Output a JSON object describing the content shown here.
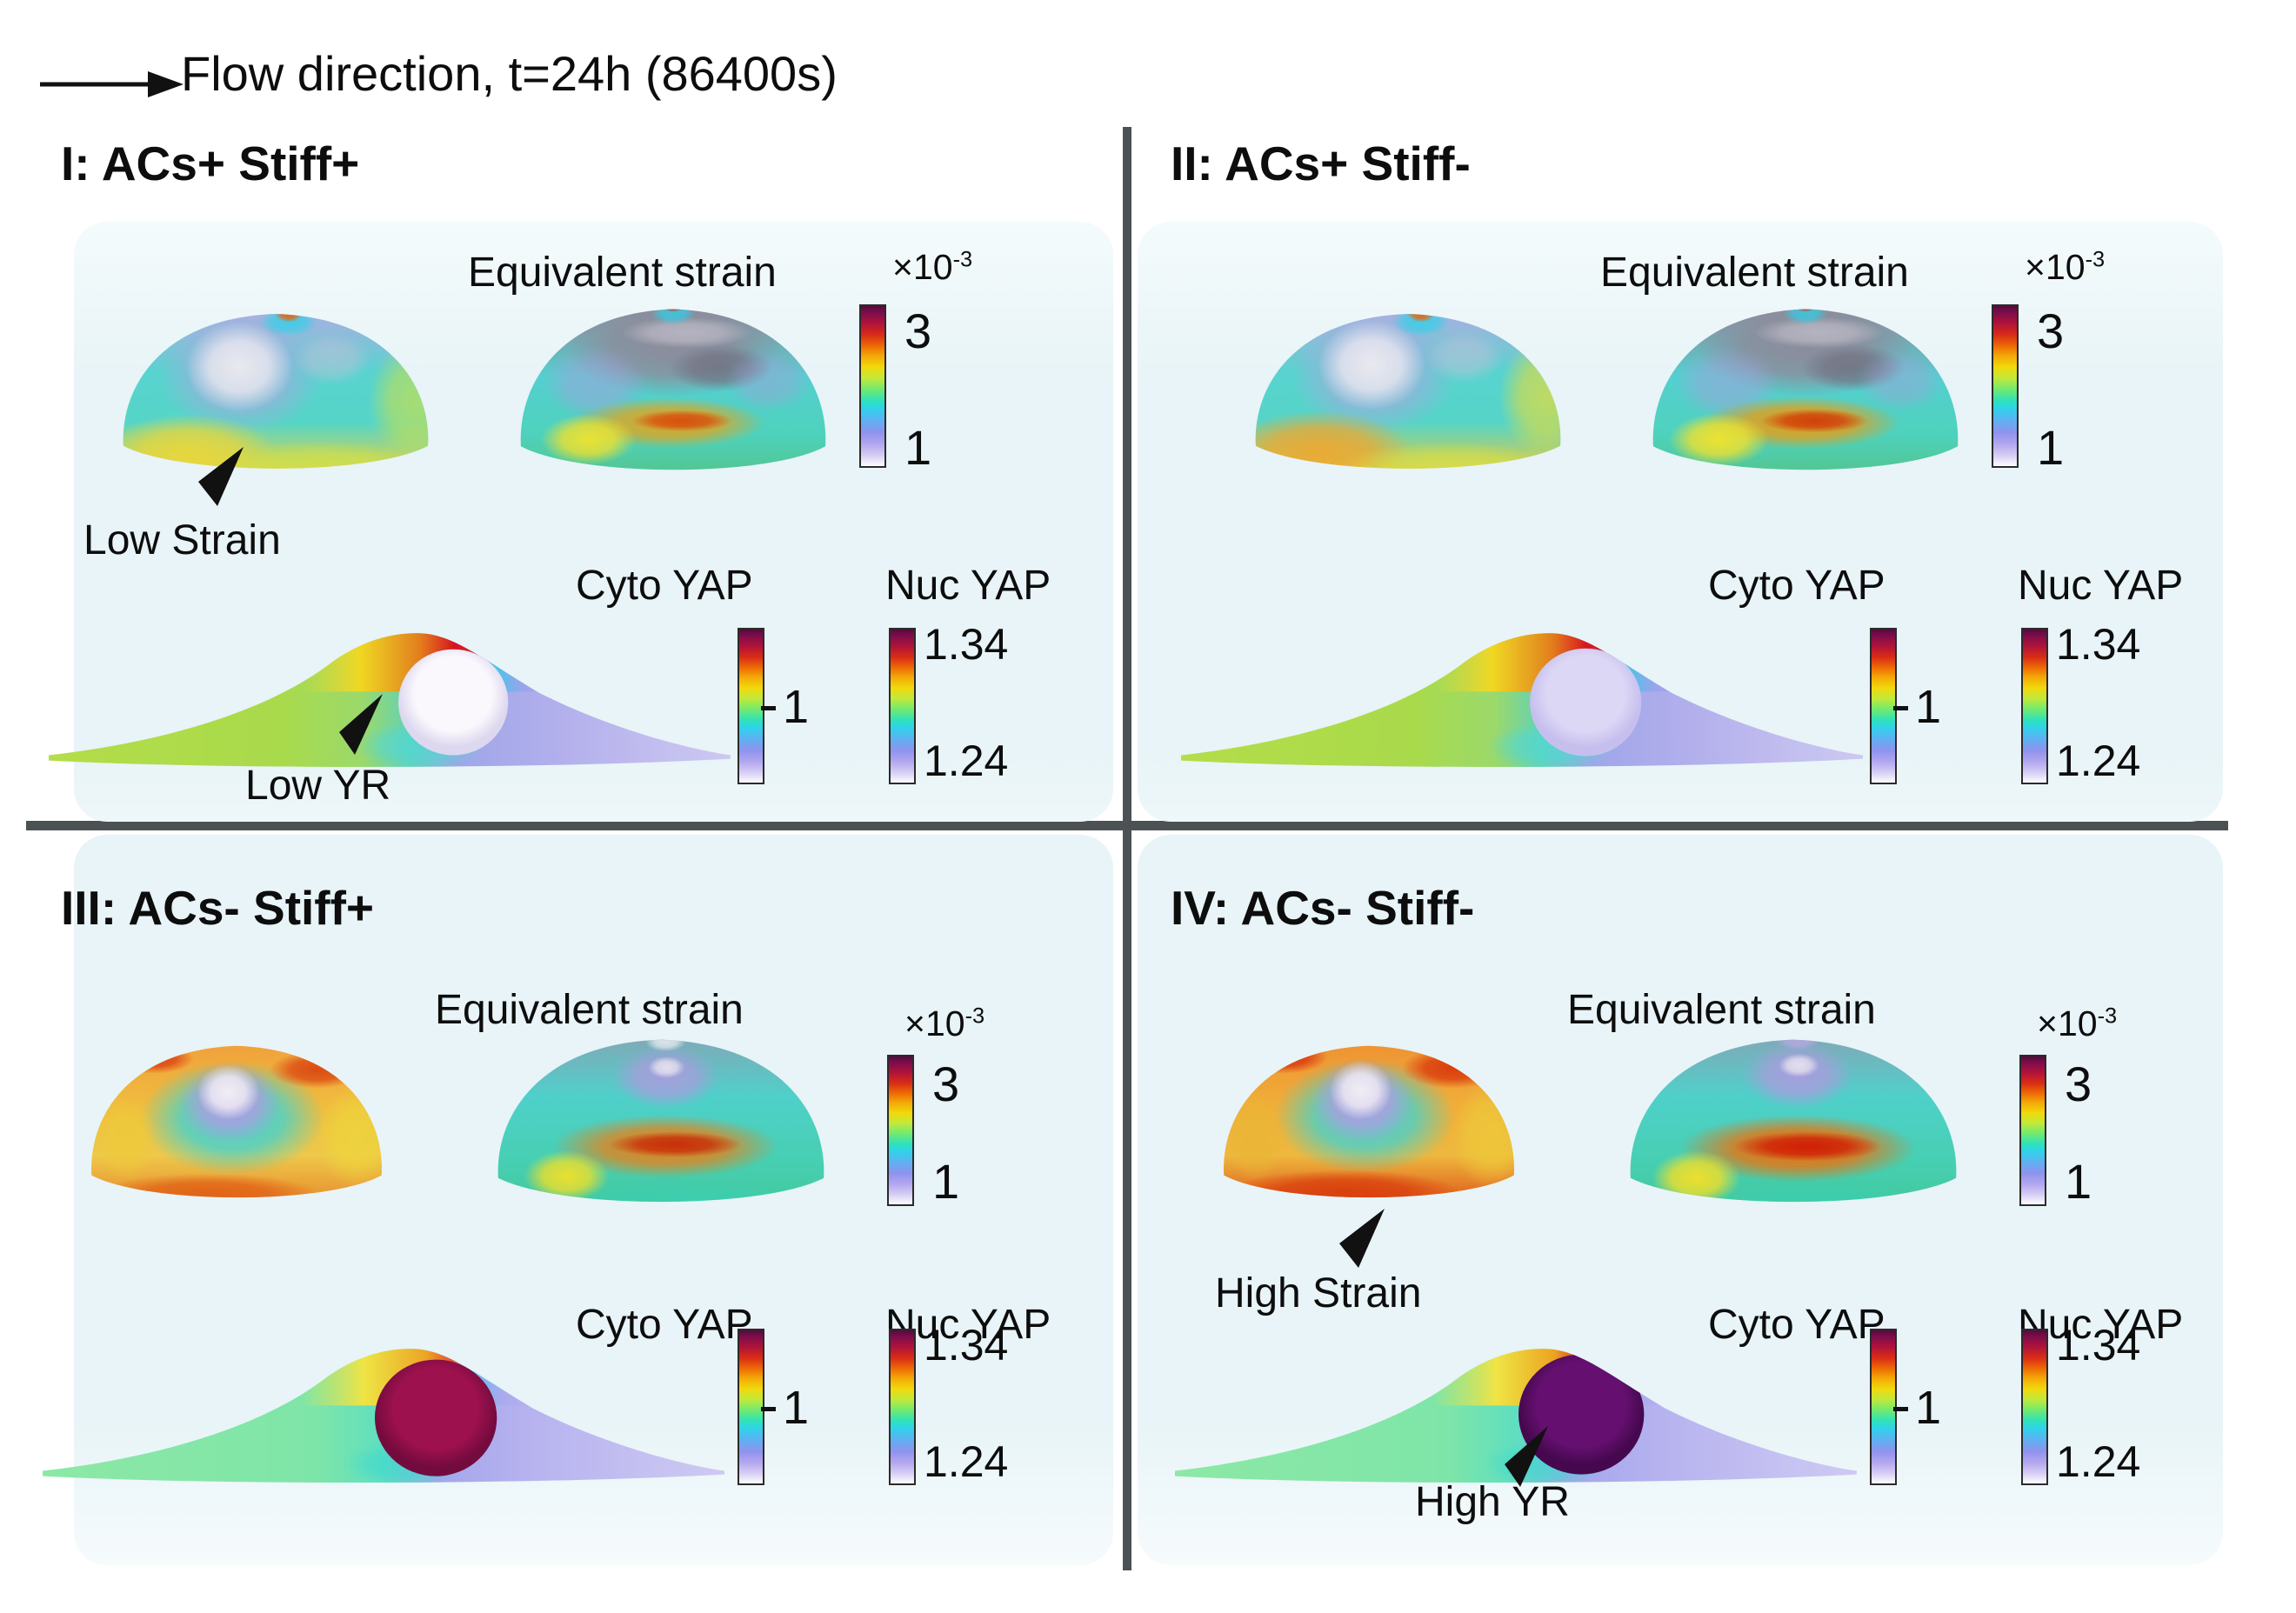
{
  "header": {
    "flow_label": "Flow direction, t=24h (86400s)"
  },
  "labels": {
    "equivalent_strain": "Equivalent strain",
    "cyto_yap": "Cyto YAP",
    "nuc_yap": "Nuc YAP",
    "multiplier": "×10",
    "exponent": "-3"
  },
  "colorbars": {
    "strain": {
      "max": "3",
      "min": "1"
    },
    "cyto": {
      "tick": "1"
    },
    "nuc": {
      "max": "1.34",
      "min": "1.24"
    }
  },
  "quadrants": [
    {
      "numeral": "I",
      "title": "I: ACs+ Stiff+",
      "annotations": {
        "strain": "Low Strain",
        "yr": "Low YR"
      }
    },
    {
      "numeral": "II",
      "title": "II: ACs+ Stiff-"
    },
    {
      "numeral": "III",
      "title": "III: ACs- Stiff+"
    },
    {
      "numeral": "IV",
      "title": "IV: ACs- Stiff-",
      "annotations": {
        "strain": "High Strain",
        "yr": "High YR"
      }
    }
  ],
  "colors": {
    "background": "#ffffff",
    "panel_bg": "#e8f4f7",
    "divider": "#4c5254",
    "strain_high": "#550a3d",
    "strain_low": "#ffffff"
  }
}
